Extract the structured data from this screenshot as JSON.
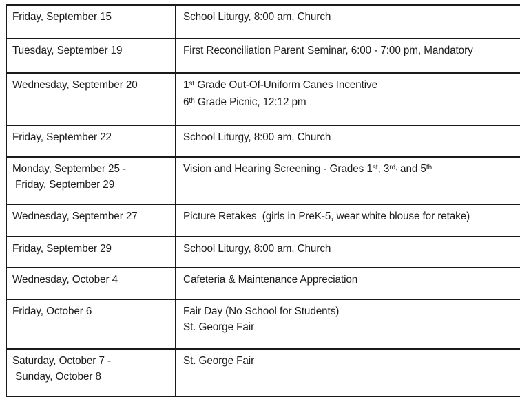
{
  "document": {
    "type": "school-calendar-table",
    "colors": {
      "text": "#1c1c1c",
      "border": "#1a1a1a",
      "background": "#ffffff"
    }
  },
  "table": {
    "columns": [
      "date",
      "event"
    ],
    "rows": [
      {
        "date": [
          [
            {
              "t": "Friday, September 15"
            }
          ]
        ],
        "event": [
          [
            {
              "t": "School Liturgy, 8:00 am, Church"
            }
          ]
        ]
      },
      {
        "date": [
          [
            {
              "t": "Tuesday, September 19"
            }
          ]
        ],
        "event": [
          [
            {
              "t": "First Reconciliation Parent Seminar, 6:00 - 7:00 pm, Mandatory"
            }
          ]
        ]
      },
      {
        "date": [
          [
            {
              "t": "Wednesday, September 20"
            }
          ]
        ],
        "event": [
          [
            {
              "t": "1"
            },
            {
              "t": "st",
              "sup": true
            },
            {
              "t": " Grade Out-Of-Uniform Canes Incentive"
            }
          ],
          [
            {
              "t": "6"
            },
            {
              "t": "th",
              "sup": true
            },
            {
              "t": " Grade Picnic, 12:12 pm"
            }
          ]
        ]
      },
      {
        "date": [
          [
            {
              "t": "Friday, September 22"
            }
          ]
        ],
        "event": [
          [
            {
              "t": "School Liturgy, 8:00 am, Church"
            }
          ]
        ]
      },
      {
        "date": [
          [
            {
              "t": "Monday, September 25 -"
            }
          ],
          [
            {
              "t": " Friday, September 29"
            }
          ]
        ],
        "event": [
          [
            {
              "t": "Vision and Hearing Screening - Grades 1"
            },
            {
              "t": "st",
              "sup": true
            },
            {
              "t": ", 3"
            },
            {
              "t": "rd,",
              "sup": true
            },
            {
              "t": " and 5"
            },
            {
              "t": "th",
              "sup": true
            }
          ]
        ]
      },
      {
        "date": [
          [
            {
              "t": "Wednesday, September 27"
            }
          ]
        ],
        "event": [
          [
            {
              "t": "Picture Retakes  (girls in PreK-5, wear white blouse for retake)"
            }
          ]
        ]
      },
      {
        "date": [
          [
            {
              "t": "Friday, September 29"
            }
          ]
        ],
        "event": [
          [
            {
              "t": "School Liturgy, 8:00 am, Church"
            }
          ]
        ]
      },
      {
        "date": [
          [
            {
              "t": "Wednesday, October 4"
            }
          ]
        ],
        "event": [
          [
            {
              "t": "Cafeteria & Maintenance Appreciation"
            }
          ]
        ]
      },
      {
        "date": [
          [
            {
              "t": "Friday, October 6"
            }
          ]
        ],
        "event": [
          [
            {
              "t": "Fair Day (No School for Students)"
            }
          ],
          [
            {
              "t": "St. George Fair"
            }
          ]
        ]
      },
      {
        "date": [
          [
            {
              "t": "Saturday, October 7 -"
            }
          ],
          [
            {
              "t": " Sunday, October 8"
            }
          ]
        ],
        "event": [
          [
            {
              "t": "St. George Fair"
            }
          ]
        ]
      }
    ]
  }
}
